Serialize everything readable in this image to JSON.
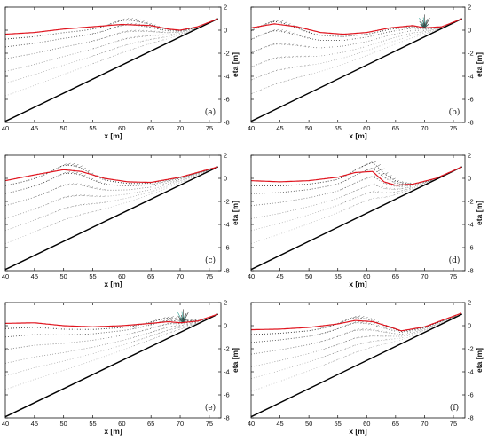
{
  "chart_data": [
    {
      "type": "line",
      "panel_label": "(a)",
      "xlabel": "x [m]",
      "ylabel": "eta [m]",
      "xlim": [
        40,
        77
      ],
      "ylim": [
        -8,
        2
      ],
      "xticks": [
        "40",
        "45",
        "50",
        "55",
        "60",
        "65",
        "70",
        "75"
      ],
      "yticks": [
        "-8",
        "-6",
        "-4",
        "-2",
        "0",
        "2"
      ],
      "slope": {
        "x": [
          40,
          76.5
        ],
        "y": [
          -7.9,
          1.0
        ]
      },
      "surface": {
        "x": [
          40,
          45,
          50,
          55,
          60,
          65,
          68,
          70,
          73,
          76.5
        ],
        "y": [
          -0.35,
          -0.2,
          0.1,
          0.3,
          0.5,
          0.4,
          0.1,
          0.0,
          0.3,
          1.0
        ]
      },
      "velocity_levels": [
        -0.5,
        -1.3,
        -2.5,
        -3.8,
        -5.0,
        -6.3
      ],
      "velocity_weights": [
        0.95,
        0.75,
        0.5,
        0.3,
        0.15,
        0.05
      ],
      "wave_crest_x": 61,
      "wave_amplitude": 0.6,
      "breaking": false
    },
    {
      "type": "line",
      "panel_label": "(b)",
      "xlabel": "x [m]",
      "ylabel": "eta [m]",
      "xlim": [
        40,
        77
      ],
      "ylim": [
        -8,
        2
      ],
      "xticks": [
        "40",
        "45",
        "50",
        "55",
        "60",
        "65",
        "70",
        "75"
      ],
      "yticks": [
        "-8",
        "-6",
        "-4",
        "-2",
        "0",
        "2"
      ],
      "slope": {
        "x": [
          40,
          76.5
        ],
        "y": [
          -7.9,
          1.0
        ]
      },
      "surface": {
        "x": [
          40,
          44,
          48,
          52,
          56,
          60,
          64,
          68,
          70,
          73,
          76.5
        ],
        "y": [
          0.2,
          0.55,
          0.3,
          -0.2,
          -0.35,
          -0.2,
          0.2,
          0.4,
          0.2,
          0.3,
          1.0
        ]
      },
      "velocity_levels": [
        -0.5,
        -1.3,
        -2.5,
        -3.8,
        -5.0,
        -6.3
      ],
      "velocity_weights": [
        0.95,
        0.75,
        0.5,
        0.3,
        0.15,
        0.05
      ],
      "wave_crest_x": 44,
      "wave_amplitude": 0.65,
      "breaking": true,
      "breaking_x": 70
    },
    {
      "type": "line",
      "panel_label": "(c)",
      "xlabel": "x [m]",
      "ylabel": "eta [m]",
      "xlim": [
        40,
        77
      ],
      "ylim": [
        -8,
        2
      ],
      "xticks": [
        "40",
        "45",
        "50",
        "55",
        "60",
        "65",
        "70",
        "75"
      ],
      "yticks": [
        "-8",
        "-6",
        "-4",
        "-2",
        "0",
        "2"
      ],
      "slope": {
        "x": [
          40,
          76.5
        ],
        "y": [
          -7.9,
          1.0
        ]
      },
      "surface": {
        "x": [
          40,
          45,
          50,
          53,
          57,
          61,
          65,
          70,
          76.5
        ],
        "y": [
          -0.2,
          0.3,
          0.75,
          0.6,
          0.0,
          -0.3,
          -0.35,
          0.1,
          1.0
        ]
      },
      "velocity_levels": [
        -0.5,
        -1.3,
        -2.5,
        -3.8,
        -5.0,
        -6.3
      ],
      "velocity_weights": [
        0.95,
        0.75,
        0.5,
        0.3,
        0.15,
        0.05
      ],
      "wave_crest_x": 51,
      "wave_amplitude": 0.8,
      "breaking": false
    },
    {
      "type": "line",
      "panel_label": "(d)",
      "xlabel": "x [m]",
      "ylabel": "eta [m]",
      "xlim": [
        40,
        77
      ],
      "ylim": [
        -8,
        2
      ],
      "xticks": [
        "40",
        "45",
        "50",
        "55",
        "60",
        "65",
        "70",
        "75"
      ],
      "yticks": [
        "-8",
        "-6",
        "-4",
        "-2",
        "0",
        "2"
      ],
      "slope": {
        "x": [
          40,
          76.5
        ],
        "y": [
          -7.9,
          1.0
        ]
      },
      "surface": {
        "x": [
          40,
          45,
          50,
          55,
          58,
          61,
          63,
          65,
          68,
          72,
          76.5
        ],
        "y": [
          -0.2,
          -0.3,
          -0.2,
          0.1,
          0.5,
          0.6,
          -0.3,
          -0.6,
          -0.5,
          0.0,
          1.0
        ]
      },
      "velocity_levels": [
        -0.5,
        -1.3,
        -2.5,
        -3.8,
        -5.0,
        -6.3
      ],
      "velocity_weights": [
        0.95,
        0.75,
        0.5,
        0.3,
        0.15,
        0.05
      ],
      "wave_crest_x": 61.5,
      "wave_amplitude": 1.0,
      "breaking": false
    },
    {
      "type": "line",
      "panel_label": "(e)",
      "xlabel": "x [m]",
      "ylabel": "eta [m]",
      "xlim": [
        40,
        77
      ],
      "ylim": [
        -8,
        2
      ],
      "xticks": [
        "40",
        "45",
        "50",
        "55",
        "60",
        "65",
        "70",
        "75"
      ],
      "yticks": [
        "-8",
        "-6",
        "-4",
        "-2",
        "0",
        "2"
      ],
      "slope": {
        "x": [
          40,
          76.5
        ],
        "y": [
          -7.9,
          1.0
        ]
      },
      "surface": {
        "x": [
          40,
          45,
          50,
          55,
          60,
          65,
          68,
          70,
          73,
          76.5
        ],
        "y": [
          0.2,
          0.25,
          0.0,
          -0.1,
          0.0,
          0.2,
          0.35,
          0.25,
          0.4,
          1.0
        ]
      },
      "velocity_levels": [
        -0.5,
        -1.3,
        -2.5,
        -3.8,
        -5.0,
        -6.3
      ],
      "velocity_weights": [
        0.95,
        0.75,
        0.5,
        0.3,
        0.15,
        0.05
      ],
      "wave_crest_x": 68,
      "wave_amplitude": 0.4,
      "breaking": true,
      "breaking_x": 70.5
    },
    {
      "type": "line",
      "panel_label": "(f)",
      "xlabel": "x [m]",
      "ylabel": "eta [m]",
      "xlim": [
        40,
        77
      ],
      "ylim": [
        -8,
        2
      ],
      "xticks": [
        "40",
        "45",
        "50",
        "55",
        "60",
        "65",
        "70",
        "75"
      ],
      "yticks": [
        "-8",
        "-6",
        "-4",
        "-2",
        "0",
        "2"
      ],
      "slope": {
        "x": [
          40,
          76.5
        ],
        "y": [
          -7.9,
          1.0
        ]
      },
      "surface": {
        "x": [
          40,
          45,
          50,
          55,
          58,
          61,
          64,
          66,
          70,
          76.5
        ],
        "y": [
          -0.35,
          -0.3,
          -0.15,
          0.15,
          0.45,
          0.35,
          -0.1,
          -0.45,
          -0.1,
          1.1
        ]
      },
      "velocity_levels": [
        -0.5,
        -1.3,
        -2.5,
        -3.8,
        -5.0,
        -6.3
      ],
      "velocity_weights": [
        0.95,
        0.75,
        0.5,
        0.3,
        0.15,
        0.05
      ],
      "wave_crest_x": 58,
      "wave_amplitude": 0.5,
      "breaking": false
    }
  ],
  "colors": {
    "surface": "#e0141e",
    "bottom": "#000000",
    "arrows": "#333333",
    "spray": "#2a9d8f",
    "frame": "#111111"
  }
}
